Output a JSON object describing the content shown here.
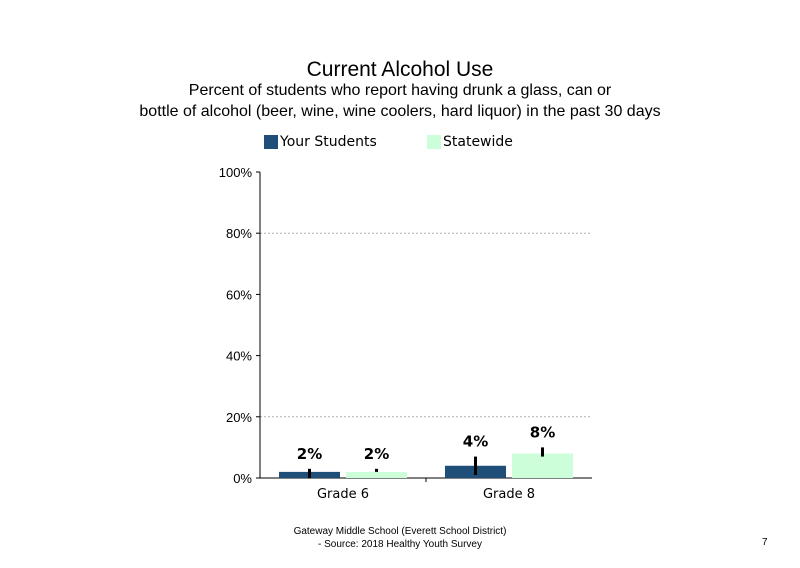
{
  "header": {
    "title": "Current  Alcohol Use",
    "subtitle_line1": "Percent of students  who report having  drunk a glass,  can or",
    "subtitle_line2": "bottle  of alcohol (beer, wine, wine coolers, hard liquor)  in the past 30 days"
  },
  "footer": {
    "line1": "Gateway Middle  School  (Everett School District)",
    "line2": "- Source: 2018 Healthy  Youth Survey",
    "page_number": "7"
  },
  "colors": {
    "your_students": "#1f4e79",
    "statewide": "#ccffd9",
    "error_bar": "#000000",
    "gridline": "#b0b0b0"
  },
  "chart_data": {
    "type": "bar",
    "categories": [
      "Grade 6",
      "Grade 8"
    ],
    "series": [
      {
        "name": "Your Students",
        "values": [
          2,
          4
        ],
        "labels": [
          "2%",
          "4%"
        ],
        "ci": [
          [
            0,
            3
          ],
          [
            1,
            7
          ]
        ]
      },
      {
        "name": "Statewide",
        "values": [
          2,
          8
        ],
        "labels": [
          "2%",
          "8%"
        ],
        "ci": [
          [
            2,
            3
          ],
          [
            7,
            10
          ]
        ]
      }
    ],
    "ylim": [
      0,
      100
    ],
    "yticks": [
      0,
      20,
      40,
      60,
      80,
      100
    ],
    "ytick_labels": [
      "0%",
      "20%",
      "40%",
      "60%",
      "80%",
      "100%"
    ],
    "grid": true,
    "legend": "top"
  }
}
